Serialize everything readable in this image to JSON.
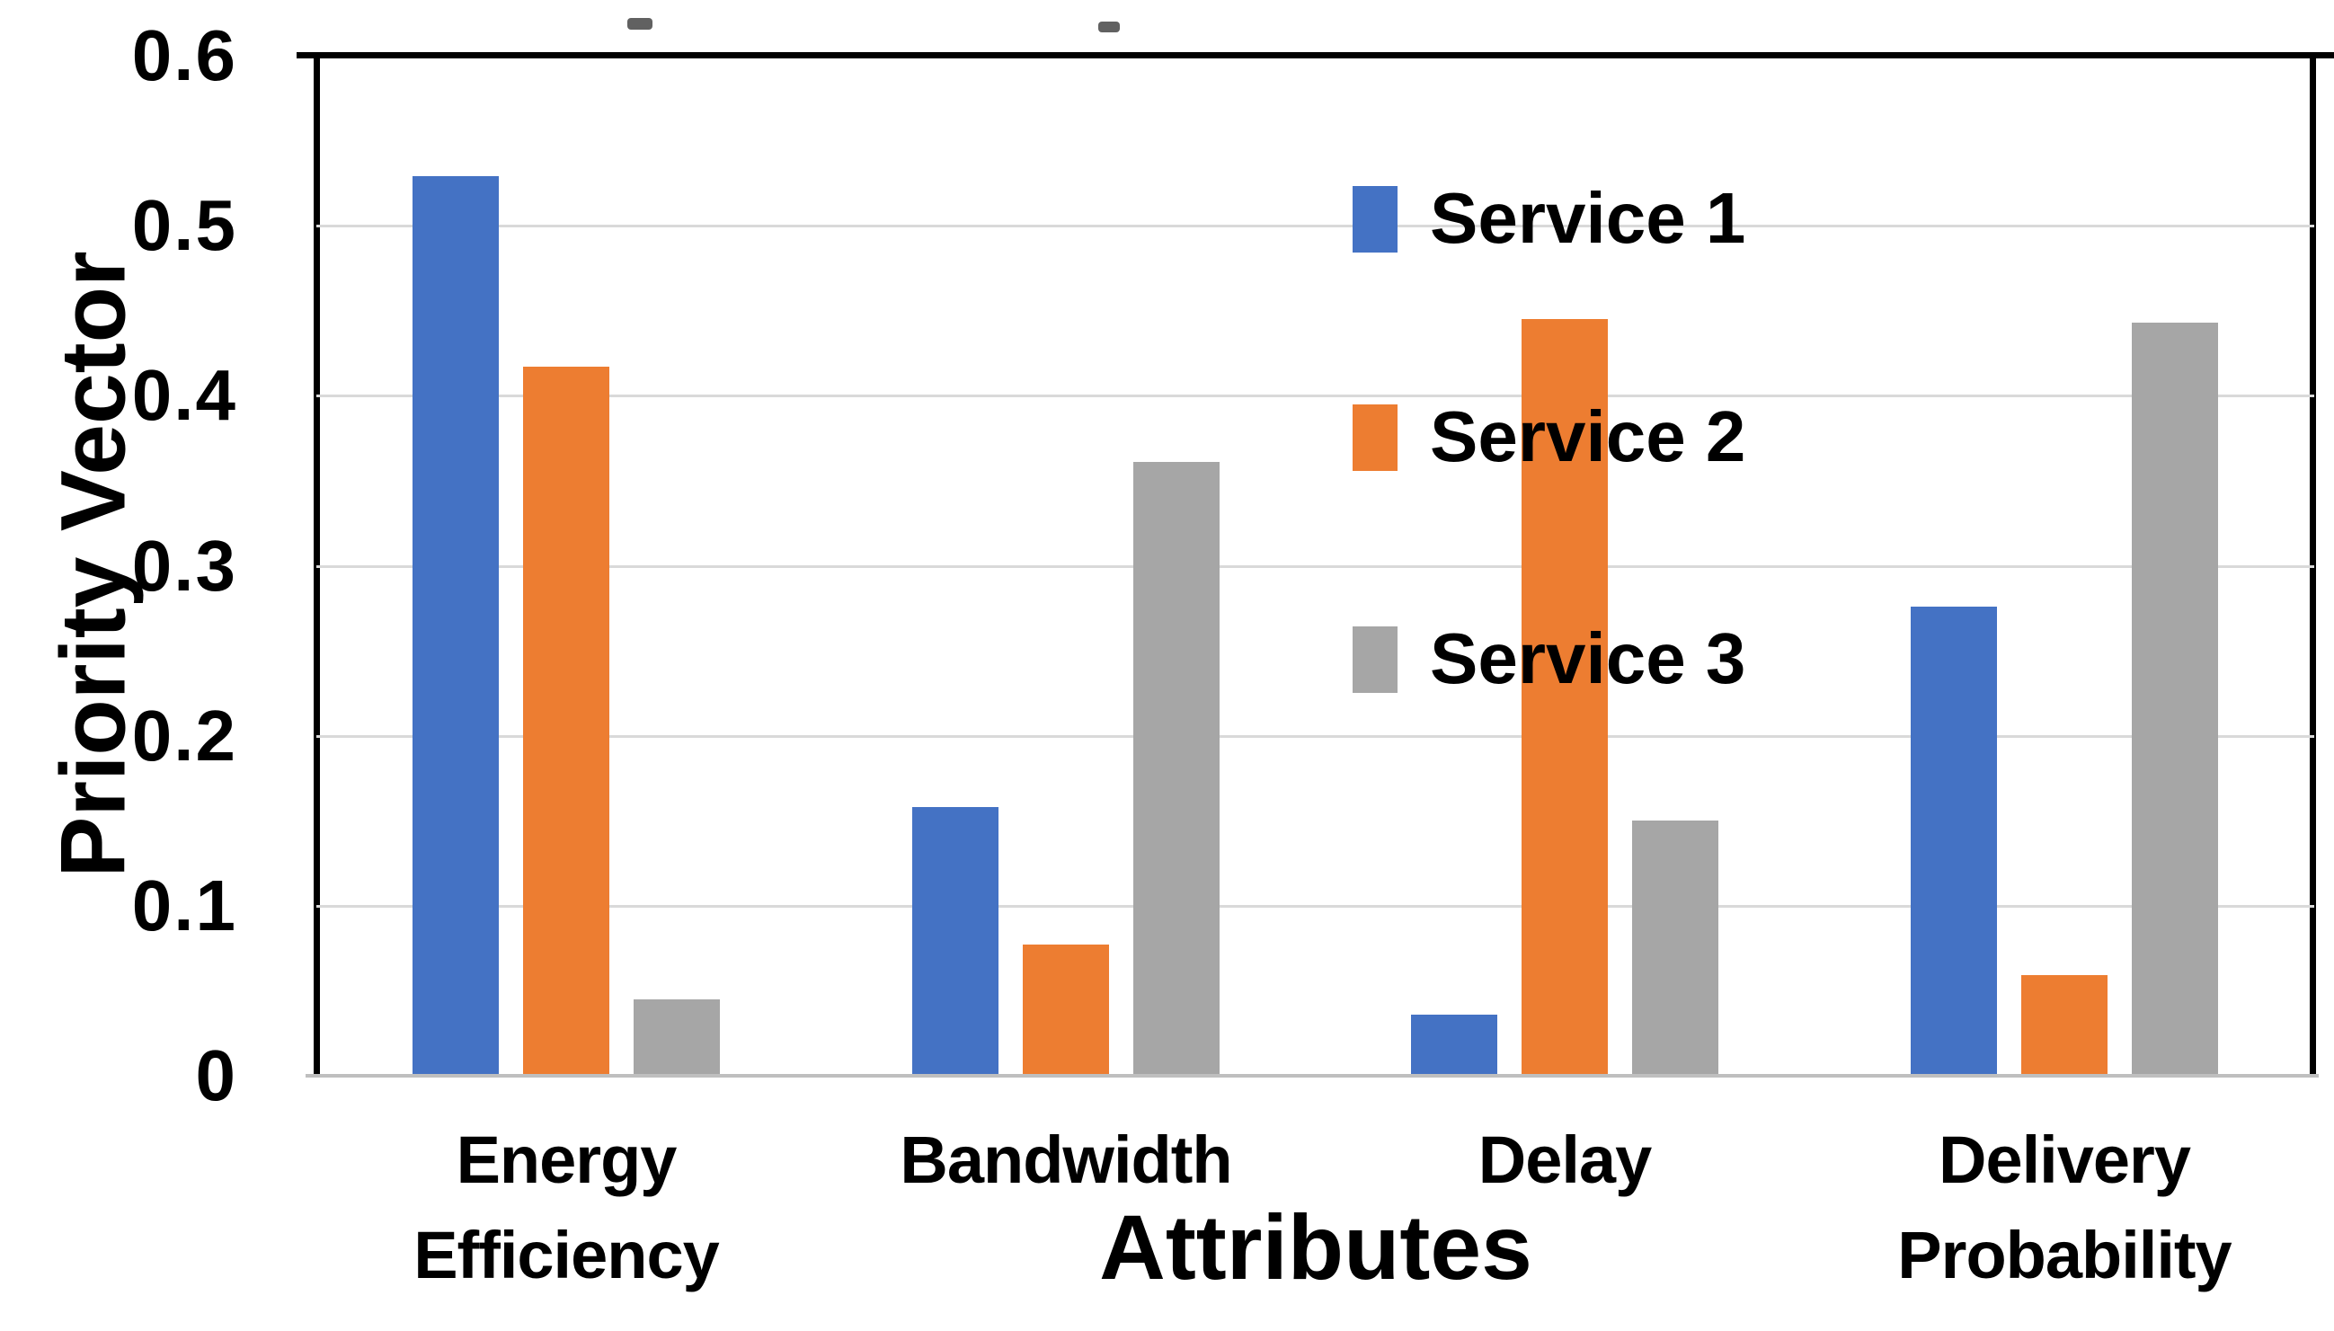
{
  "chart_data": {
    "type": "bar",
    "title": "",
    "xlabel": "Attributes",
    "ylabel": "Priority Vector",
    "categories": [
      "Energy Efficiency",
      "Bandwidth",
      "Delay",
      "Delivery Probability"
    ],
    "category_label_lines": [
      [
        "Energy",
        "Efficiency"
      ],
      [
        "Bandwidth"
      ],
      [
        "Delay"
      ],
      [
        "Delivery",
        "Probability"
      ]
    ],
    "series": [
      {
        "name": "Service 1",
        "color": "#4472C4",
        "values": [
          0.529,
          0.158,
          0.036,
          0.276
        ]
      },
      {
        "name": "Service 2",
        "color": "#ED7D31",
        "values": [
          0.417,
          0.077,
          0.445,
          0.059
        ]
      },
      {
        "name": "Service 3",
        "color": "#A6A6A6",
        "values": [
          0.045,
          0.361,
          0.15,
          0.443
        ]
      }
    ],
    "ylim": [
      0,
      0.6
    ],
    "yticks": [
      0,
      0.1,
      0.2,
      0.3,
      0.4,
      0.5,
      0.6
    ],
    "ytick_labels": [
      "0",
      "0.1",
      "0.2",
      "0.3",
      "0.4",
      "0.5",
      "0.6"
    ],
    "grid": true,
    "legend_position": "inside-top-right"
  },
  "colors": {
    "plot_border": "#000000",
    "gridline": "#d9d9d9",
    "bottom_axis": "#bfbfbf",
    "background": "#ffffff",
    "text": "#000000"
  }
}
